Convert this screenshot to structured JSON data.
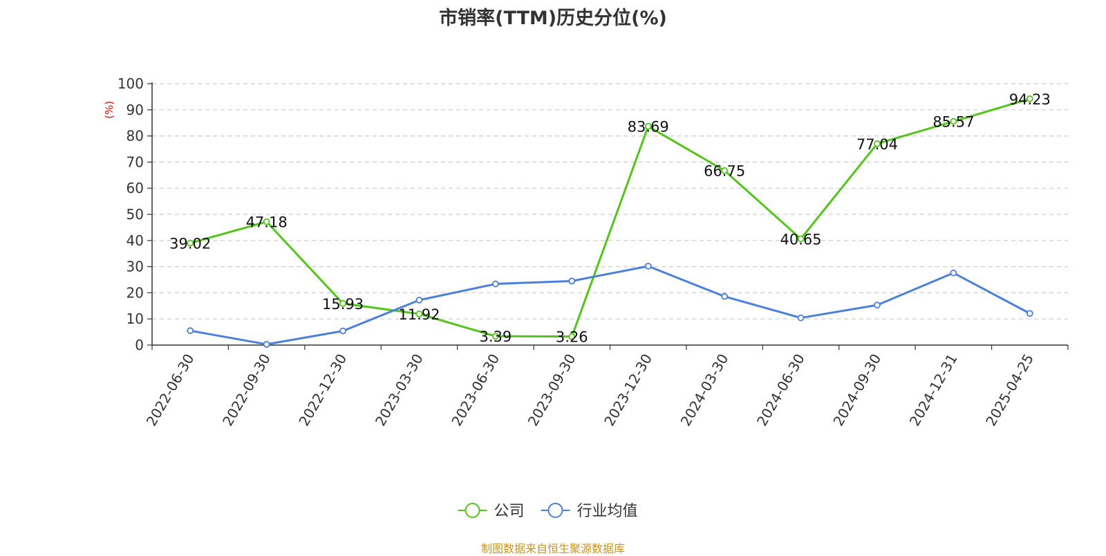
{
  "chart_data": {
    "type": "line",
    "title": "市销率(TTM)历史分位(%)",
    "ylabel": "(%)",
    "xlabel": "",
    "ylim": [
      0,
      100
    ],
    "yticks": [
      0,
      10,
      20,
      30,
      40,
      50,
      60,
      70,
      80,
      90,
      100
    ],
    "grid": true,
    "legend_position": "bottom-center",
    "categories": [
      "2022-06-30",
      "2022-09-30",
      "2022-12-30",
      "2023-03-30",
      "2023-06-30",
      "2023-09-30",
      "2023-12-30",
      "2024-03-30",
      "2024-06-30",
      "2024-09-30",
      "2024-12-31",
      "2025-04-25"
    ],
    "series": [
      {
        "name": "公司",
        "color": "#52c41a",
        "values": [
          39.02,
          47.18,
          15.93,
          11.92,
          3.39,
          3.26,
          83.69,
          66.75,
          40.65,
          77.04,
          85.57,
          94.23
        ],
        "data_labels": [
          "39.02",
          "47.18",
          "15.93",
          "11.92",
          "3.39",
          "3.26",
          "83.69",
          "66.75",
          "40.65",
          "77.04",
          "85.57",
          "94.23"
        ]
      },
      {
        "name": "行业均值",
        "color": "#4a7fdc",
        "values": [
          5.5,
          0.3,
          5.4,
          17.2,
          23.4,
          24.5,
          30.2,
          18.6,
          10.4,
          15.3,
          27.6,
          12.1
        ]
      }
    ]
  },
  "source_note": "制图数据来自恒生聚源数据库"
}
